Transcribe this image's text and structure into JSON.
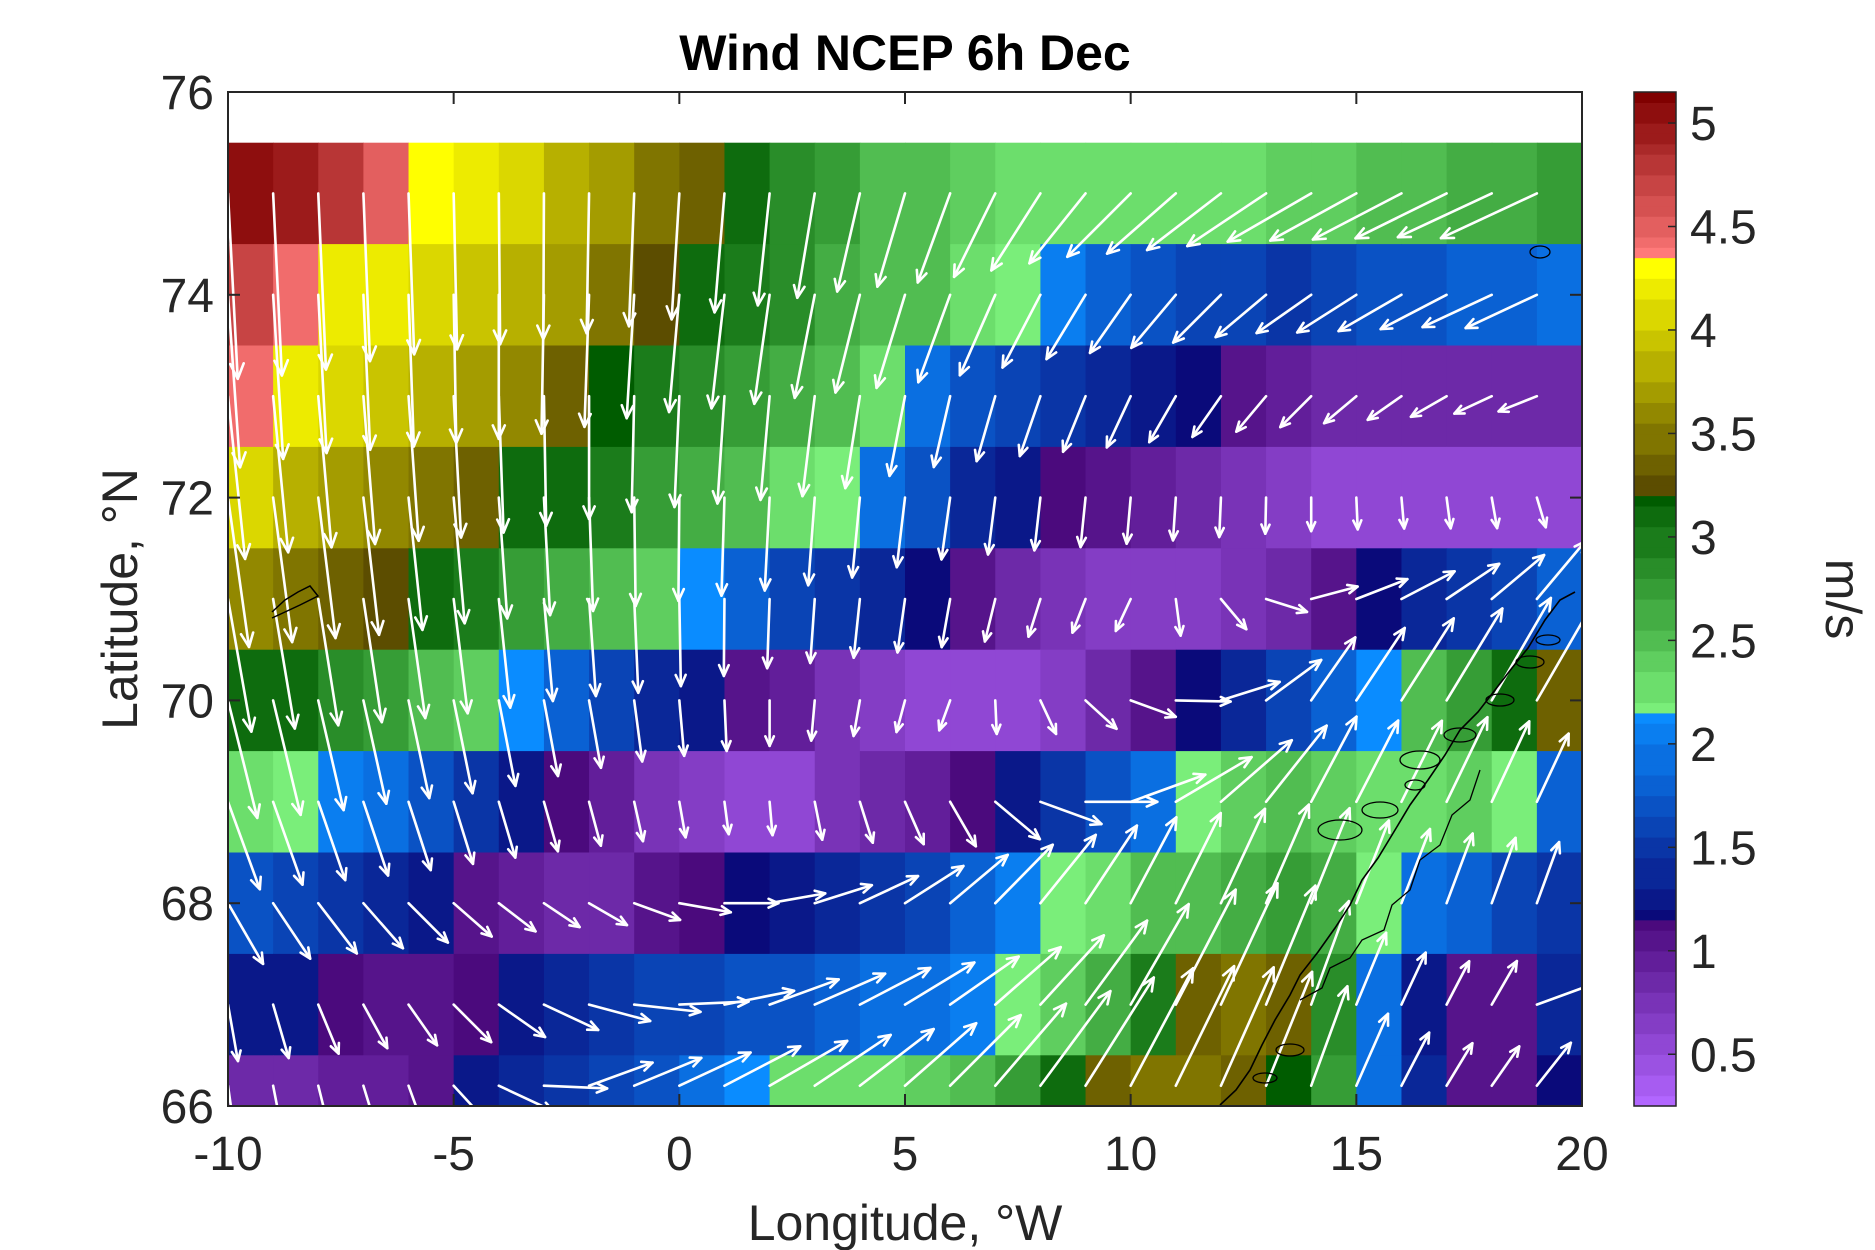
{
  "chart_data": {
    "type": "heatmap",
    "title": "Wind NCEP 6h Dec",
    "xlabel": "Longitude, °W",
    "ylabel": "Latitude, °N",
    "xlim": [
      -10,
      20
    ],
    "ylim": [
      66,
      76
    ],
    "x_ticks": [
      -10,
      -5,
      0,
      5,
      10,
      15,
      20
    ],
    "x_tick_labels": [
      "-10",
      "-5",
      "0",
      "5",
      "10",
      "15",
      "20"
    ],
    "y_ticks": [
      66,
      68,
      70,
      72,
      74,
      76
    ],
    "y_tick_labels": [
      "66",
      "68",
      "70",
      "72",
      "74",
      "76"
    ],
    "grid": false,
    "field": {
      "lon_start": -10,
      "lon_step": 1.0,
      "lon_count": 30,
      "lat_rows_top_to_bottom": [
        75.0,
        74.0,
        73.0,
        72.0,
        71.0,
        70.0,
        69.0,
        68.0,
        67.0,
        66.2
      ],
      "lat_row_edges_top_to_bottom": [
        75.5,
        74.5,
        73.5,
        72.5,
        71.5,
        70.5,
        69.5,
        68.5,
        67.5,
        66.5,
        66.0
      ],
      "speed_anchors_lon": [
        -10,
        -8,
        -6,
        -4,
        -2,
        0,
        2,
        4,
        6,
        8,
        10,
        12,
        14,
        16,
        18,
        19.5
      ],
      "speed_rows": [
        [
          5.1,
          4.9,
          4.4,
          4.1,
          3.8,
          3.4,
          3.0,
          2.6,
          2.4,
          2.3,
          2.2,
          2.3,
          2.4,
          2.5,
          2.6,
          2.7
        ],
        [
          4.8,
          4.3,
          4.1,
          3.9,
          3.6,
          3.1,
          2.9,
          2.6,
          2.4,
          2.1,
          1.7,
          1.6,
          1.5,
          1.7,
          1.8,
          1.9
        ],
        [
          4.5,
          4.1,
          3.9,
          3.7,
          3.3,
          2.9,
          2.7,
          2.5,
          1.8,
          1.5,
          1.3,
          1.1,
          0.9,
          0.8,
          0.8,
          0.8
        ],
        [
          4.1,
          3.8,
          3.6,
          3.2,
          3.0,
          2.7,
          2.4,
          2.1,
          1.5,
          1.2,
          1.0,
          0.8,
          0.6,
          0.5,
          0.5,
          0.5
        ],
        [
          3.6,
          3.4,
          3.2,
          2.9,
          2.5,
          2.3,
          1.7,
          1.4,
          1.1,
          0.8,
          0.6,
          0.7,
          0.9,
          1.3,
          1.5,
          1.8
        ],
        [
          3.2,
          3.0,
          2.6,
          2.3,
          1.7,
          1.3,
          1.0,
          0.7,
          0.5,
          0.6,
          0.9,
          1.3,
          1.7,
          2.3,
          2.9,
          3.4
        ],
        [
          2.4,
          2.1,
          1.8,
          1.4,
          1.0,
          0.7,
          0.5,
          0.8,
          1.0,
          1.4,
          1.8,
          2.3,
          2.5,
          2.2,
          2.4,
          1.8
        ],
        [
          1.7,
          1.5,
          1.3,
          1.0,
          0.8,
          1.1,
          1.2,
          1.4,
          1.7,
          2.1,
          2.4,
          2.6,
          2.8,
          2.0,
          1.7,
          1.5
        ],
        [
          1.3,
          1.2,
          1.0,
          1.2,
          1.4,
          1.6,
          1.7,
          1.9,
          2.0,
          2.2,
          2.8,
          3.6,
          3.3,
          1.4,
          0.9,
          1.4
        ],
        [
          0.8,
          0.9,
          1.0,
          1.3,
          1.5,
          1.8,
          2.2,
          2.3,
          2.4,
          2.9,
          3.5,
          3.5,
          3.1,
          1.5,
          0.9,
          1.2
        ]
      ],
      "direction_anchors_lon": [
        -10,
        -6,
        -2,
        2,
        6,
        10,
        14,
        18,
        19.5
      ],
      "direction_rows_deg": [
        [
          -87,
          -88,
          -91,
          -96,
          -110,
          -135,
          -150,
          -155,
          -155
        ],
        [
          -86,
          -88,
          -92,
          -98,
          -110,
          -125,
          -145,
          -155,
          -155
        ],
        [
          -84,
          -86,
          -90,
          -95,
          -103,
          -115,
          -135,
          -155,
          -160
        ],
        [
          -82,
          -84,
          -88,
          -93,
          -98,
          -95,
          -90,
          -80,
          -70
        ],
        [
          -80,
          -82,
          -86,
          -92,
          -100,
          -115,
          15,
          40,
          55
        ],
        [
          -76,
          -78,
          -80,
          -90,
          -110,
          -20,
          55,
          60,
          60
        ],
        [
          -70,
          -72,
          -75,
          -85,
          -60,
          20,
          62,
          65,
          65
        ],
        [
          -60,
          -45,
          -30,
          10,
          40,
          62,
          68,
          70,
          70
        ],
        [
          -80,
          -55,
          -15,
          20,
          35,
          60,
          70,
          60,
          0
        ],
        [
          -82,
          -70,
          20,
          30,
          45,
          62,
          70,
          55,
          50
        ]
      ]
    },
    "colorbar": {
      "label": "m/s",
      "min": 0.25,
      "max": 5.15,
      "ticks": [
        0.5,
        1,
        1.5,
        2,
        2.5,
        3,
        3.5,
        4,
        4.5,
        5
      ],
      "tick_labels": [
        "0.5",
        "1",
        "1.5",
        "2",
        "2.5",
        "3",
        "3.5",
        "4",
        "4.5",
        "5"
      ],
      "bands": [
        {
          "from": 0.25,
          "to": 1.15,
          "low_color": "#b266ff",
          "high_color": "#4b0a7d"
        },
        {
          "from": 1.15,
          "to": 2.15,
          "low_color": "#0a0a7a",
          "high_color": "#0a8cff"
        },
        {
          "from": 2.15,
          "to": 3.22,
          "low_color": "#7aee7a",
          "high_color": "#005c00"
        },
        {
          "from": 3.22,
          "to": 4.33,
          "low_color": "#5c4d00",
          "high_color": "#ffff00"
        },
        {
          "from": 4.33,
          "to": 5.15,
          "low_color": "#ff7a7a",
          "high_color": "#800000"
        }
      ]
    },
    "coastline_color": "#000000",
    "arrow_color": "#ffffff"
  }
}
